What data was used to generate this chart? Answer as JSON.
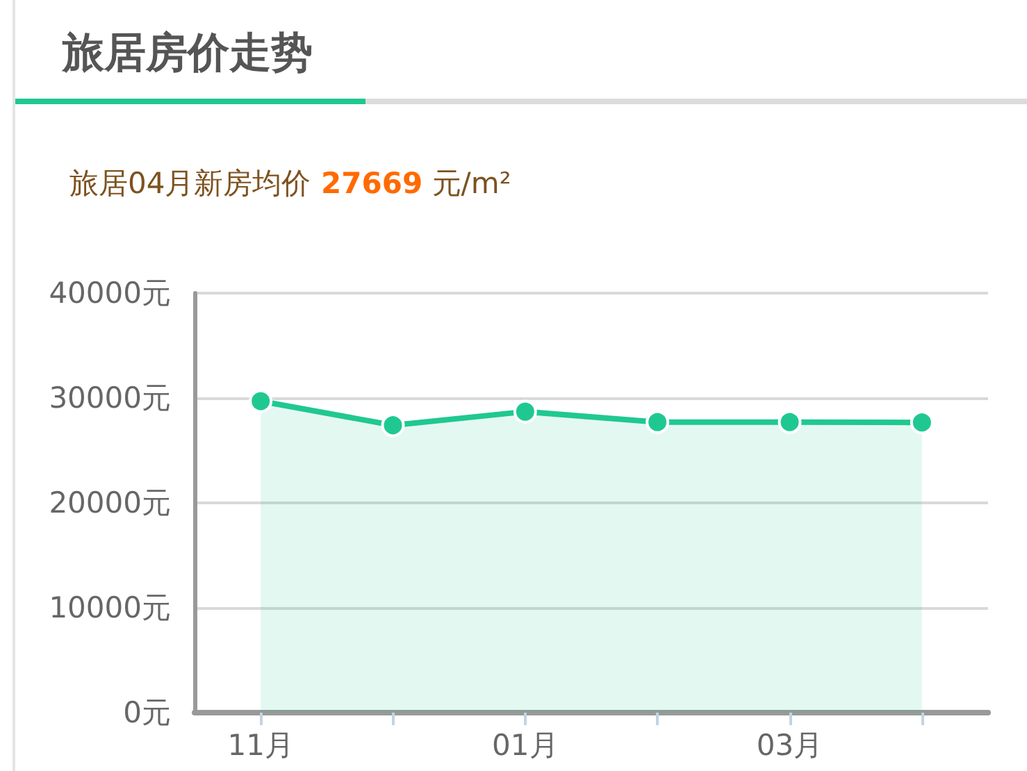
{
  "chart_data": {
    "type": "area",
    "title": "旅居房价走势",
    "subtitle": "旅居04月新房均价 27669 元/m²",
    "categories": [
      "11月",
      null,
      "01月",
      null,
      "03月",
      null
    ],
    "series": [
      {
        "color": "#20c891",
        "values": [
          29700,
          27400,
          28700,
          27700,
          27700,
          27669
        ]
      }
    ],
    "ylim": [
      0,
      40000
    ],
    "yticks": [
      {
        "value": 0,
        "label": "0元"
      },
      {
        "value": 10000,
        "label": "10000元"
      },
      {
        "value": 20000,
        "label": "20000元"
      },
      {
        "value": 30000,
        "label": "30000元"
      },
      {
        "value": 40000,
        "label": "40000元"
      }
    ],
    "grid": "y",
    "marker": "circle"
  }
}
